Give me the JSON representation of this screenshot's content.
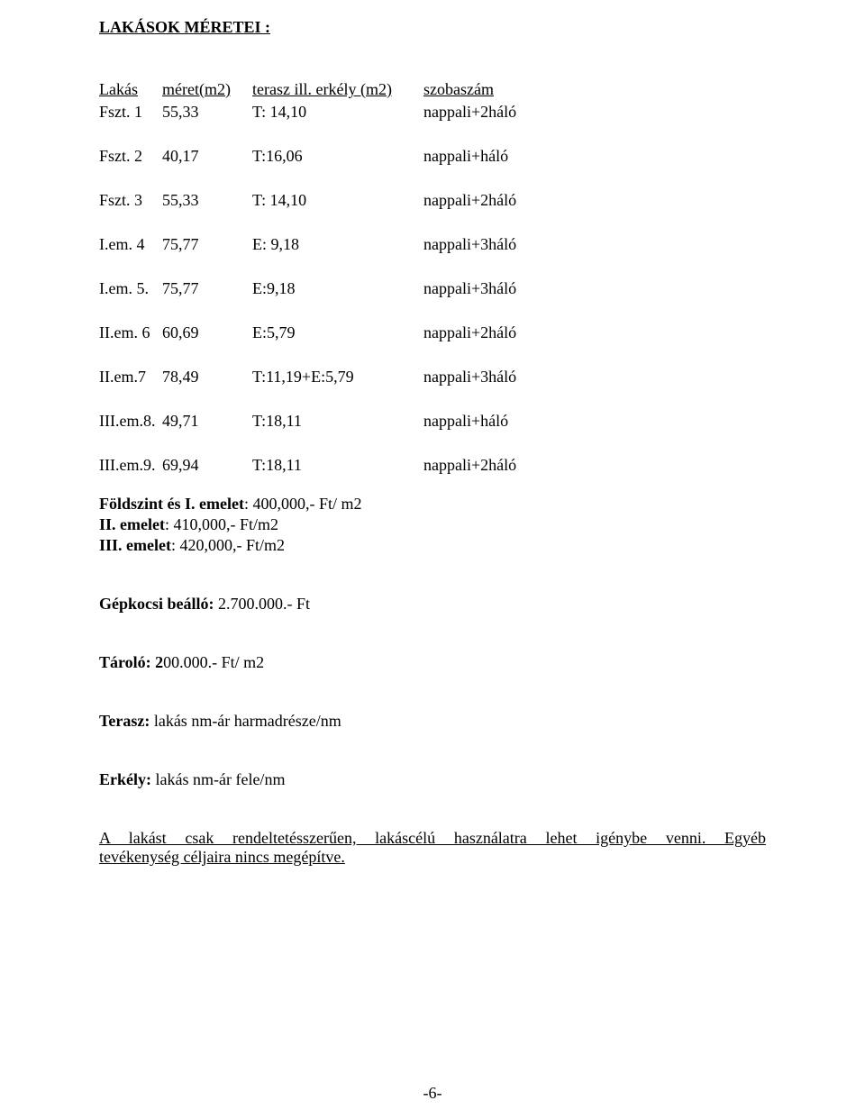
{
  "heading": "LAKÁSOK MÉRETEI :",
  "table": {
    "headers": {
      "lakas": "Lakás",
      "meret": "méret(m2)",
      "terasz": "terasz ill. erkély (m2)",
      "szobaszam": "szobaszám"
    },
    "rows": [
      {
        "lakas": "Fszt. 1",
        "meret": "55,33",
        "terasz": "T: 14,10",
        "szobaszam": "nappali+2háló",
        "spaced": true
      },
      {
        "lakas": "Fszt. 2",
        "meret": "40,17",
        "terasz": "T:16,06",
        "szobaszam": "nappali+háló",
        "spaced": true
      },
      {
        "lakas": "Fszt. 3",
        "meret": "55,33",
        "terasz": "T: 14,10",
        "szobaszam": "nappali+2háló",
        "spaced": true
      },
      {
        "lakas": "I.em. 4",
        "meret": "75,77",
        "terasz": "E: 9,18",
        "szobaszam": "nappali+3háló",
        "spaced": true
      },
      {
        "lakas": "I.em. 5.",
        "meret": "75,77",
        "terasz": "E:9,18",
        "szobaszam": "nappali+3háló",
        "spaced": true
      },
      {
        "lakas": "II.em. 6",
        "meret": "60,69",
        "terasz": "E:5,79",
        "szobaszam": "nappali+2háló",
        "spaced": true
      },
      {
        "lakas": "II.em.7",
        "meret": "78,49",
        "terasz": "T:11,19+E:5,79",
        "szobaszam": "nappali+3háló",
        "spaced": true
      },
      {
        "lakas": "III.em.8.",
        "meret": "49,71",
        "terasz": "T:18,11",
        "szobaszam": "nappali+háló",
        "spaced": true
      },
      {
        "lakas": "III.em.9.",
        "meret": "69,94",
        "terasz": "T:18,11",
        "szobaszam": "nappali+2háló",
        "spaced": false
      }
    ]
  },
  "prices": {
    "line1_bold": "Földszint és I. emelet",
    "line1_rest": ": 400,000,- Ft/ m2",
    "line2_bold": "II. emelet",
    "line2_rest": ": 410,000,- Ft/m2",
    "line3_bold": "III. emelet",
    "line3_rest": ": 420,000,- Ft/m2"
  },
  "gepkocsi_bold": "Gépkocsi beálló: ",
  "gepkocsi_rest": "2.700.000.- Ft",
  "tarolo_bold": "Tároló: 2",
  "tarolo_rest": "00.000.- Ft/ m2",
  "terasz_bold": "Terasz: ",
  "terasz_rest": "lakás nm-ár harmadrésze/nm",
  "erkely_bold": "Erkély: ",
  "erkely_rest": "lakás nm-ár fele/nm",
  "final_line1": "A lakást csak rendeltetésszerűen, lakáscélú használatra lehet igénybe venni. Egyéb",
  "final_line2": "tevékenység céljaira nincs megépítve.",
  "page_number": "-6-"
}
